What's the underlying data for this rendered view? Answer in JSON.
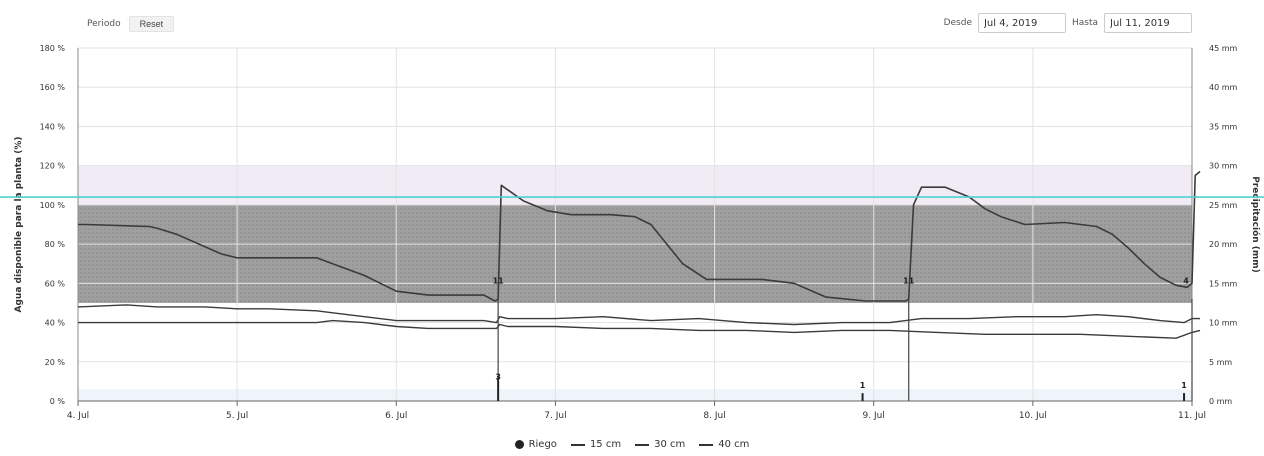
{
  "toolbar": {
    "period_label": "Periodo",
    "reset_label": "Reset",
    "from_label": "Desde",
    "from_value": "Jul 4, 2019",
    "to_label": "Hasta",
    "to_value": "Jul 11, 2019"
  },
  "colors": {
    "optimal_band": "#9a9a9a",
    "saturation_band": "#e7ddf0",
    "threshold_line": "#4fd0cf",
    "soil_line": "#3b3b3b",
    "grid": "#e3e3e3"
  },
  "chart_data": {
    "type": "line",
    "title": "",
    "xlabel": "",
    "ylabel": "Agua disponible para la planta (%)",
    "y2label": "Precipitación (mm)",
    "x_ticks": [
      "4. Jul",
      "5. Jul",
      "6. Jul",
      "7. Jul",
      "8. Jul",
      "9. Jul",
      "10. Jul",
      "11. Jul"
    ],
    "x_range": [
      0,
      7
    ],
    "ylim": [
      0,
      180
    ],
    "y_ticks": [
      0,
      20,
      40,
      60,
      80,
      100,
      120,
      140,
      160,
      180
    ],
    "y_tick_suffix": " %",
    "y2lim": [
      0,
      45
    ],
    "y2_ticks": [
      0,
      5,
      10,
      15,
      20,
      25,
      30,
      35,
      40,
      45
    ],
    "y2_tick_suffix": " mm",
    "grid": true,
    "legend_position": "bottom",
    "bands": [
      {
        "name": "optimal",
        "from": 50,
        "to": 100
      },
      {
        "name": "saturation",
        "from": 100,
        "to": 120
      },
      {
        "name": "low",
        "from": 0,
        "to": 6
      }
    ],
    "threshold": 104,
    "riego": {
      "name": "Riego",
      "points": [
        {
          "x": 2.64,
          "y": 3,
          "label": "3"
        },
        {
          "x": 4.93,
          "y": 1,
          "label": "1"
        },
        {
          "x": 6.95,
          "y": 1,
          "label": "1"
        }
      ]
    },
    "irrigation_markers": [
      {
        "x": 2.64,
        "label": "11"
      },
      {
        "x": 5.22,
        "label": "11"
      },
      {
        "x": 7.0,
        "label": "4"
      }
    ],
    "series": [
      {
        "name": "15 cm",
        "x": [
          0,
          0.05,
          0.45,
          0.5,
          0.62,
          0.9,
          1.0,
          1.1,
          1.5,
          1.6,
          1.8,
          2.0,
          2.2,
          2.4,
          2.55,
          2.62,
          2.64,
          2.66,
          2.8,
          2.95,
          3.1,
          3.35,
          3.5,
          3.6,
          3.7,
          3.8,
          3.95,
          4.15,
          4.3,
          4.5,
          4.7,
          4.95,
          5.1,
          5.2,
          5.22,
          5.25,
          5.3,
          5.45,
          5.6,
          5.7,
          5.8,
          5.95,
          6.2,
          6.4,
          6.5,
          6.6,
          6.7,
          6.8,
          6.9,
          6.97,
          7.0,
          7.02,
          7.05
        ],
        "y": [
          90,
          90,
          89,
          88,
          85,
          75,
          73,
          73,
          73,
          70,
          64,
          56,
          54,
          54,
          54,
          51,
          52,
          110,
          102,
          97,
          95,
          95,
          94,
          90,
          80,
          70,
          62,
          62,
          62,
          60,
          53,
          51,
          51,
          51,
          52,
          100,
          109,
          109,
          104,
          98,
          94,
          90,
          91,
          89,
          85,
          78,
          70,
          63,
          59,
          58,
          60,
          115,
          117
        ]
      },
      {
        "name": "30 cm",
        "x": [
          0,
          0.3,
          0.5,
          0.8,
          1.0,
          1.2,
          1.5,
          1.6,
          1.8,
          2.0,
          2.2,
          2.4,
          2.55,
          2.63,
          2.65,
          2.7,
          3.0,
          3.3,
          3.6,
          3.9,
          4.2,
          4.5,
          4.8,
          5.1,
          5.3,
          5.6,
          5.9,
          6.2,
          6.4,
          6.6,
          6.8,
          6.95,
          7.0,
          7.05
        ],
        "y": [
          48,
          49,
          48,
          48,
          47,
          47,
          46,
          45,
          43,
          41,
          41,
          41,
          41,
          40,
          43,
          42,
          42,
          43,
          41,
          42,
          40,
          39,
          40,
          40,
          42,
          42,
          43,
          43,
          44,
          43,
          41,
          40,
          42,
          42
        ]
      },
      {
        "name": "40 cm",
        "x": [
          0,
          0.3,
          0.6,
          0.9,
          1.2,
          1.5,
          1.6,
          1.8,
          2.0,
          2.2,
          2.5,
          2.63,
          2.65,
          2.7,
          3.0,
          3.3,
          3.6,
          3.9,
          4.2,
          4.5,
          4.8,
          5.1,
          5.4,
          5.7,
          6.0,
          6.3,
          6.6,
          6.9,
          7.0,
          7.05
        ],
        "y": [
          40,
          40,
          40,
          40,
          40,
          40,
          41,
          40,
          38,
          37,
          37,
          37,
          39,
          38,
          38,
          37,
          37,
          36,
          36,
          35,
          36,
          36,
          35,
          34,
          34,
          34,
          33,
          32,
          35,
          36
        ]
      }
    ]
  }
}
